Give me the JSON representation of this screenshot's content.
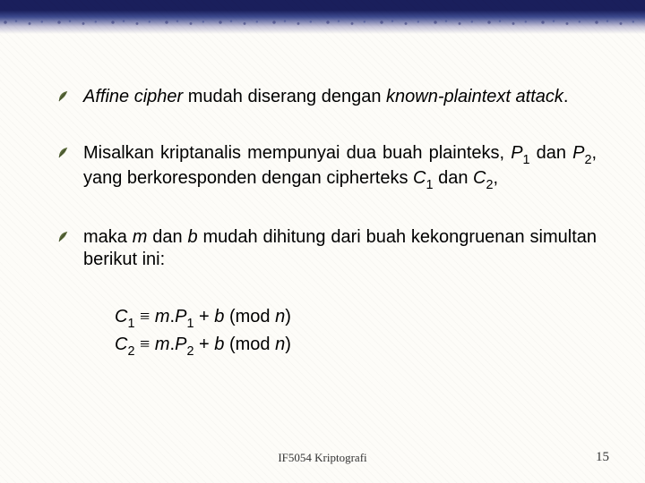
{
  "bullets": [
    {
      "html": "<span class='italic'>Affine cipher</span> mudah diserang dengan <span class='italic'>known-plaintext attack</span>."
    },
    {
      "html": "Misalkan kriptanalis mempunyai dua buah plainteks, <span class='italic'>P</span><span class='sub'>1</span> dan <span class='italic'>P</span><span class='sub'>2</span>, yang berkoresponden dengan cipherteks <span class='italic'>C</span><span class='sub'>1</span> dan <span class='italic'>C</span><span class='sub'>2</span>,"
    },
    {
      "html": "maka <span class='italic'>m</span> dan <span class='italic'>b</span> mudah dihitung dari buah kekongruenan simultan berikut ini:"
    }
  ],
  "equations": [
    {
      "html": "<span class='italic'>C</span><span class='sub'>1</span> <span class='congr'>&#8801;</span> <span class='italic'>m</span>.<span class='italic'>P</span><span class='sub'>1</span> + <span class='italic'>b</span> (mod <span class='italic'>n</span>)"
    },
    {
      "html": "<span class='italic'>C</span><span class='sub'>2</span> <span class='congr'>&#8801;</span> <span class='italic'>m</span>.<span class='italic'>P</span><span class='sub'>2</span> + <span class='italic'>b</span> (mod <span class='italic'>n</span>)"
    }
  ],
  "footer": {
    "center": "IF5054 Kriptografi",
    "page": "15"
  },
  "style": {
    "bullet_fill": "#5a6a3a",
    "bullet_stroke": "#3d4a28"
  }
}
